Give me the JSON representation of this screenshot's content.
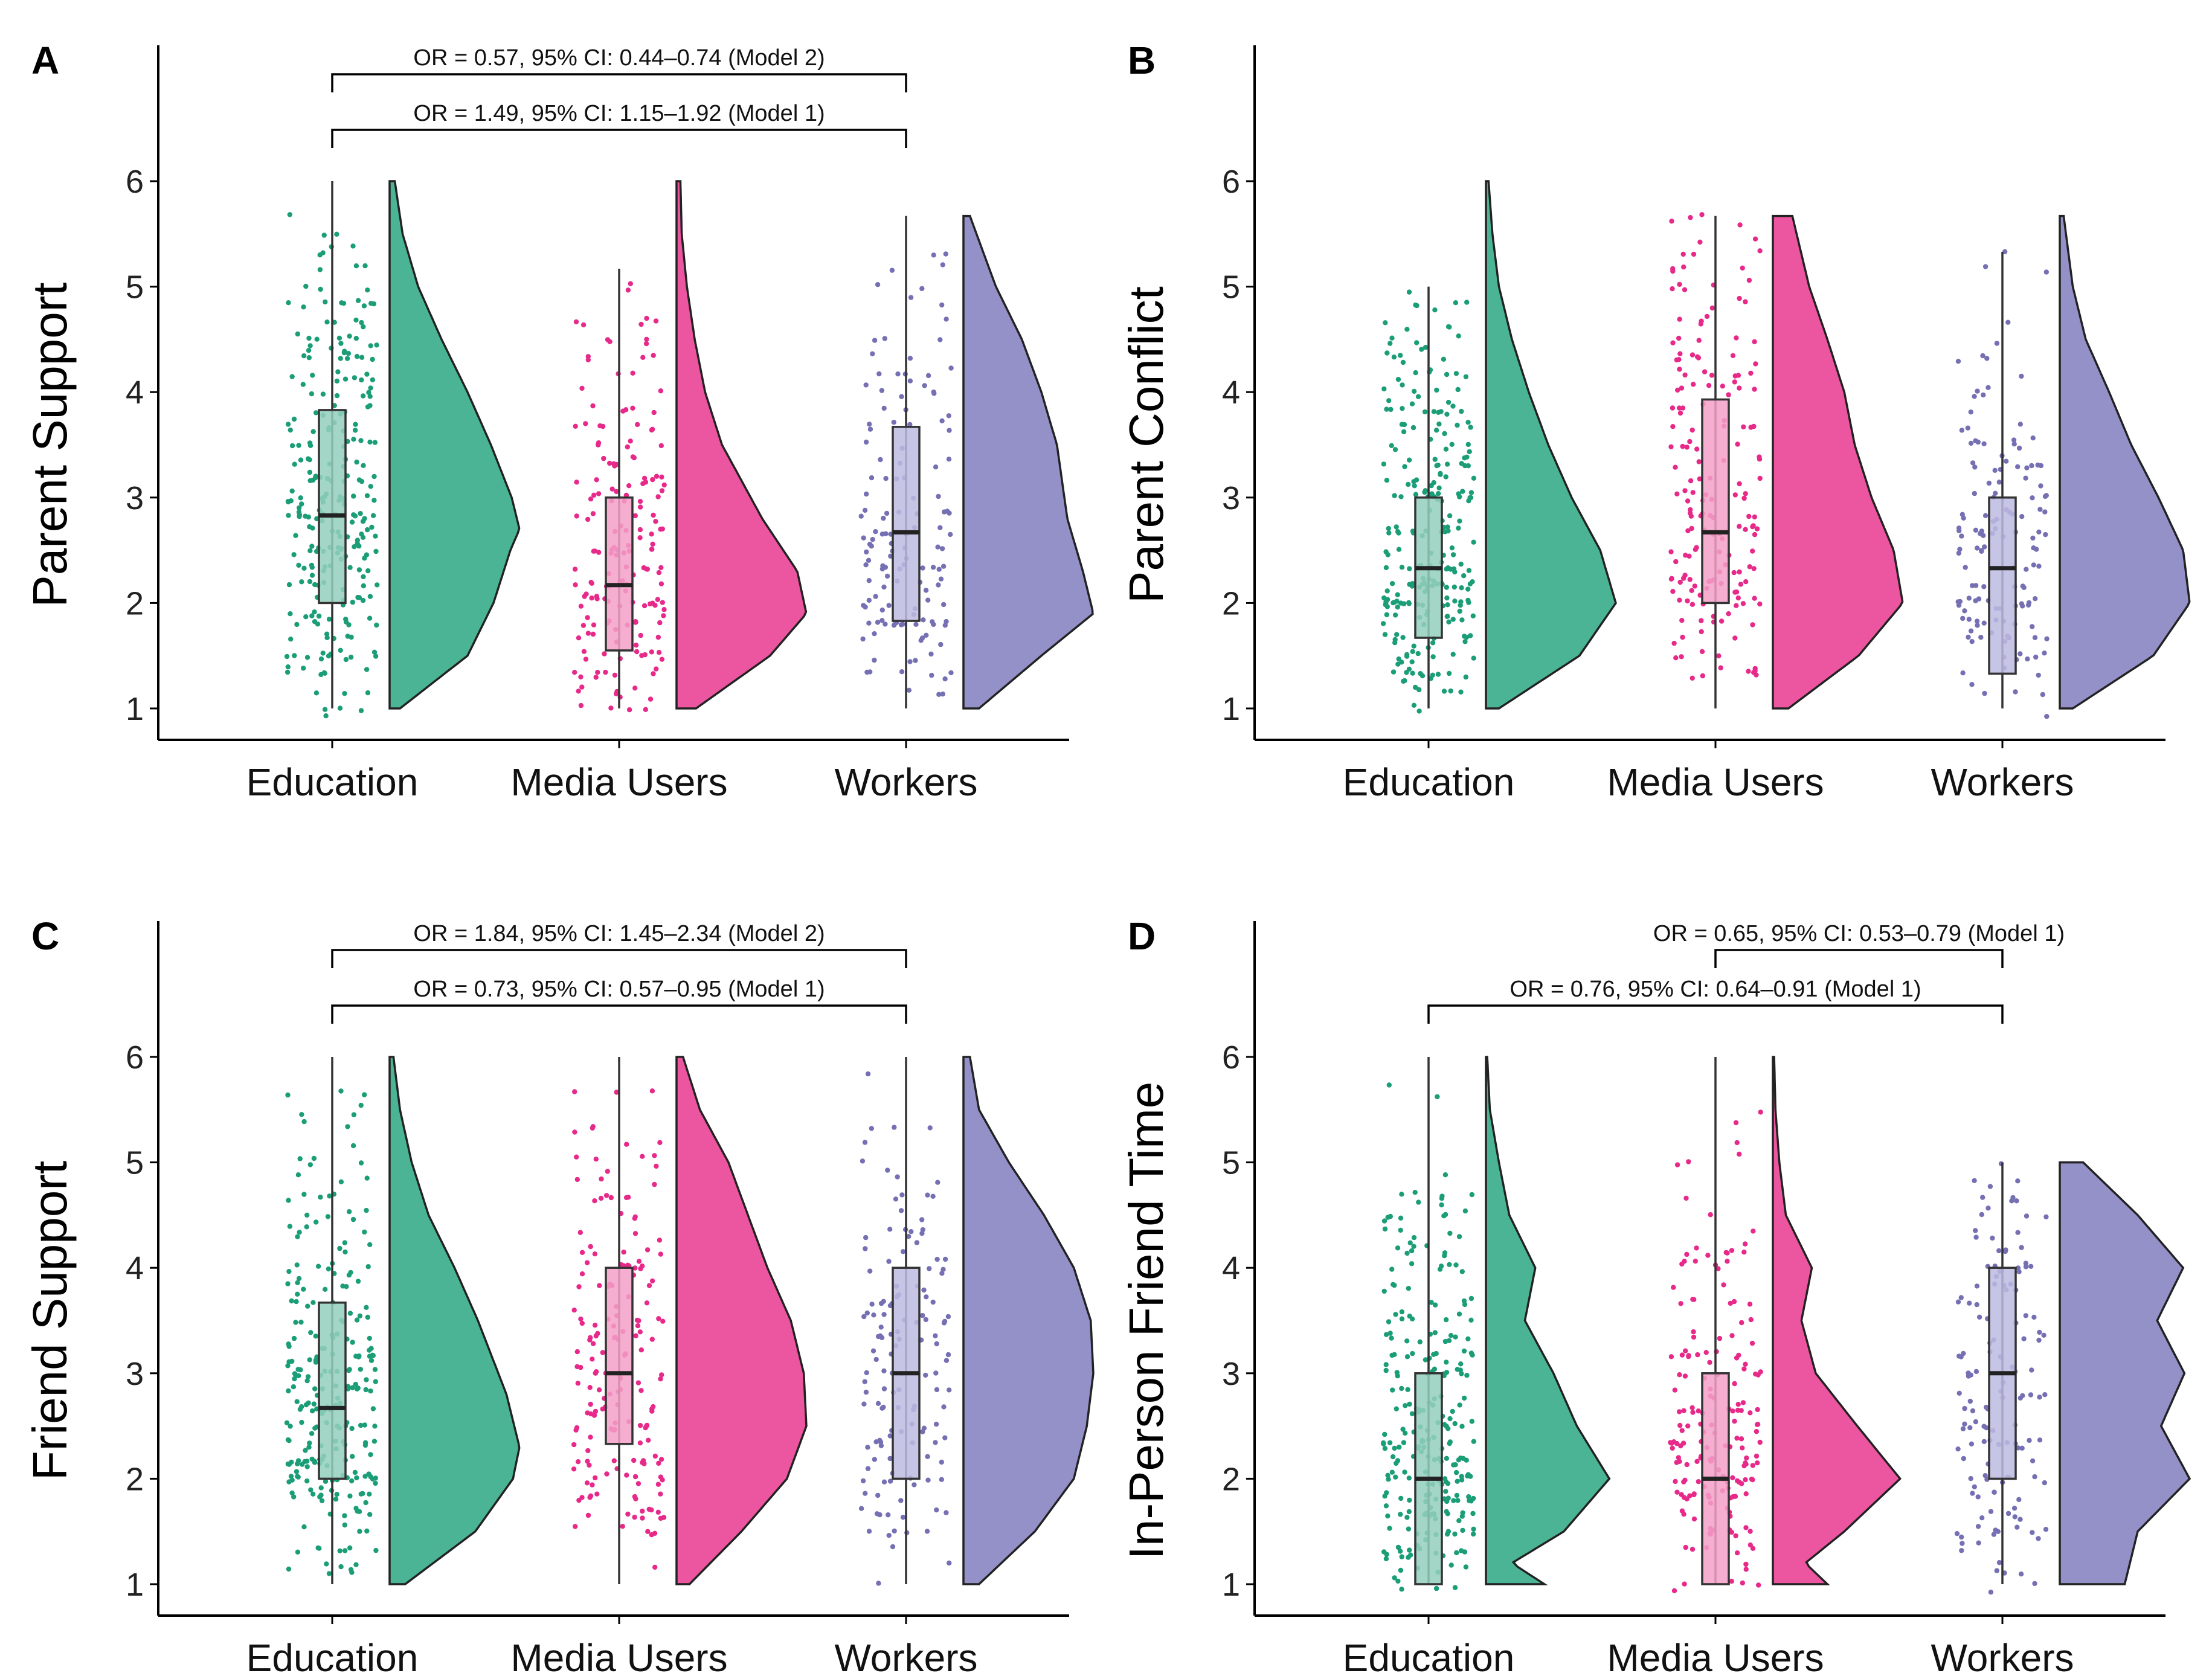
{
  "colors": {
    "Education": "#1b9e77",
    "Media Users": "#e7298a",
    "Workers": "#7570b3",
    "violin_Education": "#4bb495",
    "violin_Media Users": "#ec559f",
    "violin_Workers": "#9490c8",
    "box_Education": "#94cfbd",
    "box_Media Users": "#f3a0c8",
    "box_Workers": "#bdbbe0"
  },
  "chart_data": [
    {
      "panel": "A",
      "type": "raincloud",
      "ylabel": "Parent Support",
      "categories": [
        "Education",
        "Media Users",
        "Workers"
      ],
      "yticks": [
        1,
        2,
        3,
        4,
        5,
        6
      ],
      "ylim": [
        1,
        6
      ],
      "series": [
        {
          "name": "Education",
          "n": 260,
          "min": 1,
          "q1": 2.0,
          "median": 2.83,
          "q3": 3.83,
          "max": 6.0,
          "density": [
            [
              1,
              0.08
            ],
            [
              1.5,
              0.6
            ],
            [
              2,
              0.8
            ],
            [
              2.5,
              0.93
            ],
            [
              2.7,
              1.0
            ],
            [
              3,
              0.94
            ],
            [
              3.5,
              0.78
            ],
            [
              4,
              0.6
            ],
            [
              4.5,
              0.4
            ],
            [
              5,
              0.22
            ],
            [
              5.5,
              0.1
            ],
            [
              6,
              0.04
            ]
          ]
        },
        {
          "name": "Media Users",
          "n": 180,
          "min": 1,
          "q1": 1.55,
          "median": 2.17,
          "q3": 3.0,
          "max": 5.17,
          "density": [
            [
              1,
              0.15
            ],
            [
              1.5,
              0.72
            ],
            [
              1.9,
              1.0
            ],
            [
              2.3,
              0.93
            ],
            [
              2.8,
              0.66
            ],
            [
              3.5,
              0.35
            ],
            [
              4,
              0.22
            ],
            [
              4.5,
              0.14
            ],
            [
              5,
              0.08
            ],
            [
              5.5,
              0.04
            ],
            [
              6,
              0.03
            ]
          ]
        },
        {
          "name": "Workers",
          "n": 140,
          "min": 1,
          "q1": 1.83,
          "median": 2.67,
          "q3": 3.67,
          "max": 5.67,
          "density": [
            [
              1,
              0.12
            ],
            [
              1.5,
              0.6
            ],
            [
              1.9,
              1.0
            ],
            [
              2.3,
              0.92
            ],
            [
              2.8,
              0.8
            ],
            [
              3.5,
              0.72
            ],
            [
              4,
              0.6
            ],
            [
              4.5,
              0.45
            ],
            [
              5,
              0.25
            ],
            [
              5.67,
              0.05
            ]
          ]
        }
      ],
      "annotations": [
        {
          "text": "OR = 0.57, 95% CI: 0.44–0.74 (Model 2)",
          "from": "Education",
          "to": "Workers",
          "level": 2
        },
        {
          "text": "OR = 1.49, 95% CI: 1.15–1.92 (Model 1)",
          "from": "Education",
          "to": "Workers",
          "level": 1
        }
      ]
    },
    {
      "panel": "B",
      "type": "raincloud",
      "ylabel": "Parent Conflict",
      "categories": [
        "Education",
        "Media Users",
        "Workers"
      ],
      "yticks": [
        1,
        2,
        3,
        4,
        5,
        6
      ],
      "ylim": [
        1,
        6
      ],
      "series": [
        {
          "name": "Education",
          "n": 260,
          "min": 1,
          "q1": 1.67,
          "median": 2.33,
          "q3": 3.0,
          "max": 5.0,
          "density": [
            [
              1,
              0.1
            ],
            [
              1.5,
              0.72
            ],
            [
              2,
              1.0
            ],
            [
              2.5,
              0.88
            ],
            [
              3,
              0.66
            ],
            [
              3.5,
              0.48
            ],
            [
              4,
              0.33
            ],
            [
              4.5,
              0.2
            ],
            [
              5,
              0.1
            ],
            [
              5.5,
              0.05
            ],
            [
              6,
              0.02
            ]
          ]
        },
        {
          "name": "Media Users",
          "n": 180,
          "min": 1,
          "q1": 2.0,
          "median": 2.67,
          "q3": 3.93,
          "max": 5.67,
          "density": [
            [
              1,
              0.12
            ],
            [
              1.5,
              0.66
            ],
            [
              2,
              1.0
            ],
            [
              2.5,
              0.93
            ],
            [
              3,
              0.76
            ],
            [
              3.5,
              0.63
            ],
            [
              4,
              0.55
            ],
            [
              4.5,
              0.42
            ],
            [
              5,
              0.28
            ],
            [
              5.67,
              0.15
            ]
          ]
        },
        {
          "name": "Workers",
          "n": 140,
          "min": 1,
          "q1": 1.33,
          "median": 2.33,
          "q3": 3.0,
          "max": 5.33,
          "density": [
            [
              1,
              0.1
            ],
            [
              1.5,
              0.72
            ],
            [
              2,
              1.0
            ],
            [
              2.5,
              0.95
            ],
            [
              3,
              0.76
            ],
            [
              3.5,
              0.55
            ],
            [
              4,
              0.38
            ],
            [
              4.5,
              0.2
            ],
            [
              5,
              0.1
            ],
            [
              5.67,
              0.03
            ]
          ]
        }
      ],
      "annotations": []
    },
    {
      "panel": "C",
      "type": "raincloud",
      "ylabel": "Friend Support",
      "categories": [
        "Education",
        "Media Users",
        "Workers"
      ],
      "yticks": [
        1,
        2,
        3,
        4,
        5,
        6
      ],
      "ylim": [
        1,
        6
      ],
      "series": [
        {
          "name": "Education",
          "n": 260,
          "min": 1,
          "q1": 2.0,
          "median": 2.67,
          "q3": 3.67,
          "max": 6.0,
          "density": [
            [
              1,
              0.12
            ],
            [
              1.5,
              0.66
            ],
            [
              2,
              0.95
            ],
            [
              2.3,
              1.0
            ],
            [
              2.8,
              0.9
            ],
            [
              3.5,
              0.68
            ],
            [
              4,
              0.5
            ],
            [
              4.5,
              0.3
            ],
            [
              5,
              0.17
            ],
            [
              5.5,
              0.08
            ],
            [
              6,
              0.03
            ]
          ]
        },
        {
          "name": "Media Users",
          "n": 180,
          "min": 1,
          "q1": 2.33,
          "median": 3.0,
          "q3": 4.0,
          "max": 6.0,
          "density": [
            [
              1,
              0.1
            ],
            [
              1.5,
              0.5
            ],
            [
              2,
              0.85
            ],
            [
              2.5,
              1.0
            ],
            [
              3,
              0.98
            ],
            [
              3.5,
              0.88
            ],
            [
              4,
              0.7
            ],
            [
              4.5,
              0.55
            ],
            [
              5,
              0.4
            ],
            [
              5.5,
              0.18
            ],
            [
              6,
              0.05
            ]
          ]
        },
        {
          "name": "Workers",
          "n": 140,
          "min": 1,
          "q1": 2.0,
          "median": 3.0,
          "q3": 4.0,
          "max": 6.0,
          "density": [
            [
              1,
              0.12
            ],
            [
              1.5,
              0.55
            ],
            [
              2,
              0.85
            ],
            [
              2.5,
              0.95
            ],
            [
              3,
              1.0
            ],
            [
              3.5,
              0.98
            ],
            [
              4,
              0.85
            ],
            [
              4.5,
              0.62
            ],
            [
              5,
              0.35
            ],
            [
              5.5,
              0.12
            ],
            [
              6,
              0.05
            ]
          ]
        }
      ],
      "annotations": [
        {
          "text": "OR = 1.84, 95% CI: 1.45–2.34 (Model 2)",
          "from": "Education",
          "to": "Workers",
          "level": 2
        },
        {
          "text": "OR = 0.73, 95% CI: 0.57–0.95 (Model 1)",
          "from": "Education",
          "to": "Workers",
          "level": 1
        }
      ]
    },
    {
      "panel": "D",
      "type": "raincloud",
      "ylabel": "In-Person Friend Time",
      "categories": [
        "Education",
        "Media Users",
        "Workers"
      ],
      "yticks": [
        1,
        2,
        3,
        4,
        5,
        6
      ],
      "ylim": [
        1,
        6
      ],
      "series": [
        {
          "name": "Education",
          "n": 260,
          "min": 1,
          "q1": 1.0,
          "median": 2.0,
          "q3": 3.0,
          "max": 6.0,
          "density": [
            [
              1,
              0.45
            ],
            [
              1.2,
              0.2
            ],
            [
              1.5,
              0.6
            ],
            [
              2,
              0.95
            ],
            [
              2.5,
              0.7
            ],
            [
              3,
              0.52
            ],
            [
              3.5,
              0.3
            ],
            [
              4,
              0.38
            ],
            [
              4.5,
              0.18
            ],
            [
              5,
              0.1
            ],
            [
              5.5,
              0.03
            ],
            [
              6,
              0.01
            ]
          ]
        },
        {
          "name": "Media Users",
          "n": 180,
          "min": 1,
          "q1": 1.0,
          "median": 2.0,
          "q3": 3.0,
          "max": 6.0,
          "density": [
            [
              1,
              0.42
            ],
            [
              1.2,
              0.25
            ],
            [
              1.5,
              0.55
            ],
            [
              2,
              0.98
            ],
            [
              2.5,
              0.65
            ],
            [
              3,
              0.33
            ],
            [
              3.5,
              0.22
            ],
            [
              4,
              0.3
            ],
            [
              4.5,
              0.1
            ],
            [
              5,
              0.05
            ],
            [
              5.5,
              0.02
            ],
            [
              6,
              0.01
            ]
          ]
        },
        {
          "name": "Workers",
          "n": 140,
          "min": 1,
          "q1": 2.0,
          "median": 3.0,
          "q3": 4.0,
          "max": 5.0,
          "density": [
            [
              1,
              0.5
            ],
            [
              1.5,
              0.6
            ],
            [
              2,
              1.0
            ],
            [
              2.5,
              0.78
            ],
            [
              3,
              0.96
            ],
            [
              3.5,
              0.75
            ],
            [
              4,
              0.95
            ],
            [
              4.5,
              0.6
            ],
            [
              5,
              0.18
            ]
          ]
        }
      ],
      "annotations": [
        {
          "text": "OR = 0.65, 95% CI: 0.53–0.79 (Model 1)",
          "from": "Media Users",
          "to": "Workers",
          "level": 2
        },
        {
          "text": "OR = 0.76, 95% CI: 0.64–0.91 (Model 1)",
          "from": "Education",
          "to": "Workers",
          "level": 1
        }
      ]
    }
  ]
}
